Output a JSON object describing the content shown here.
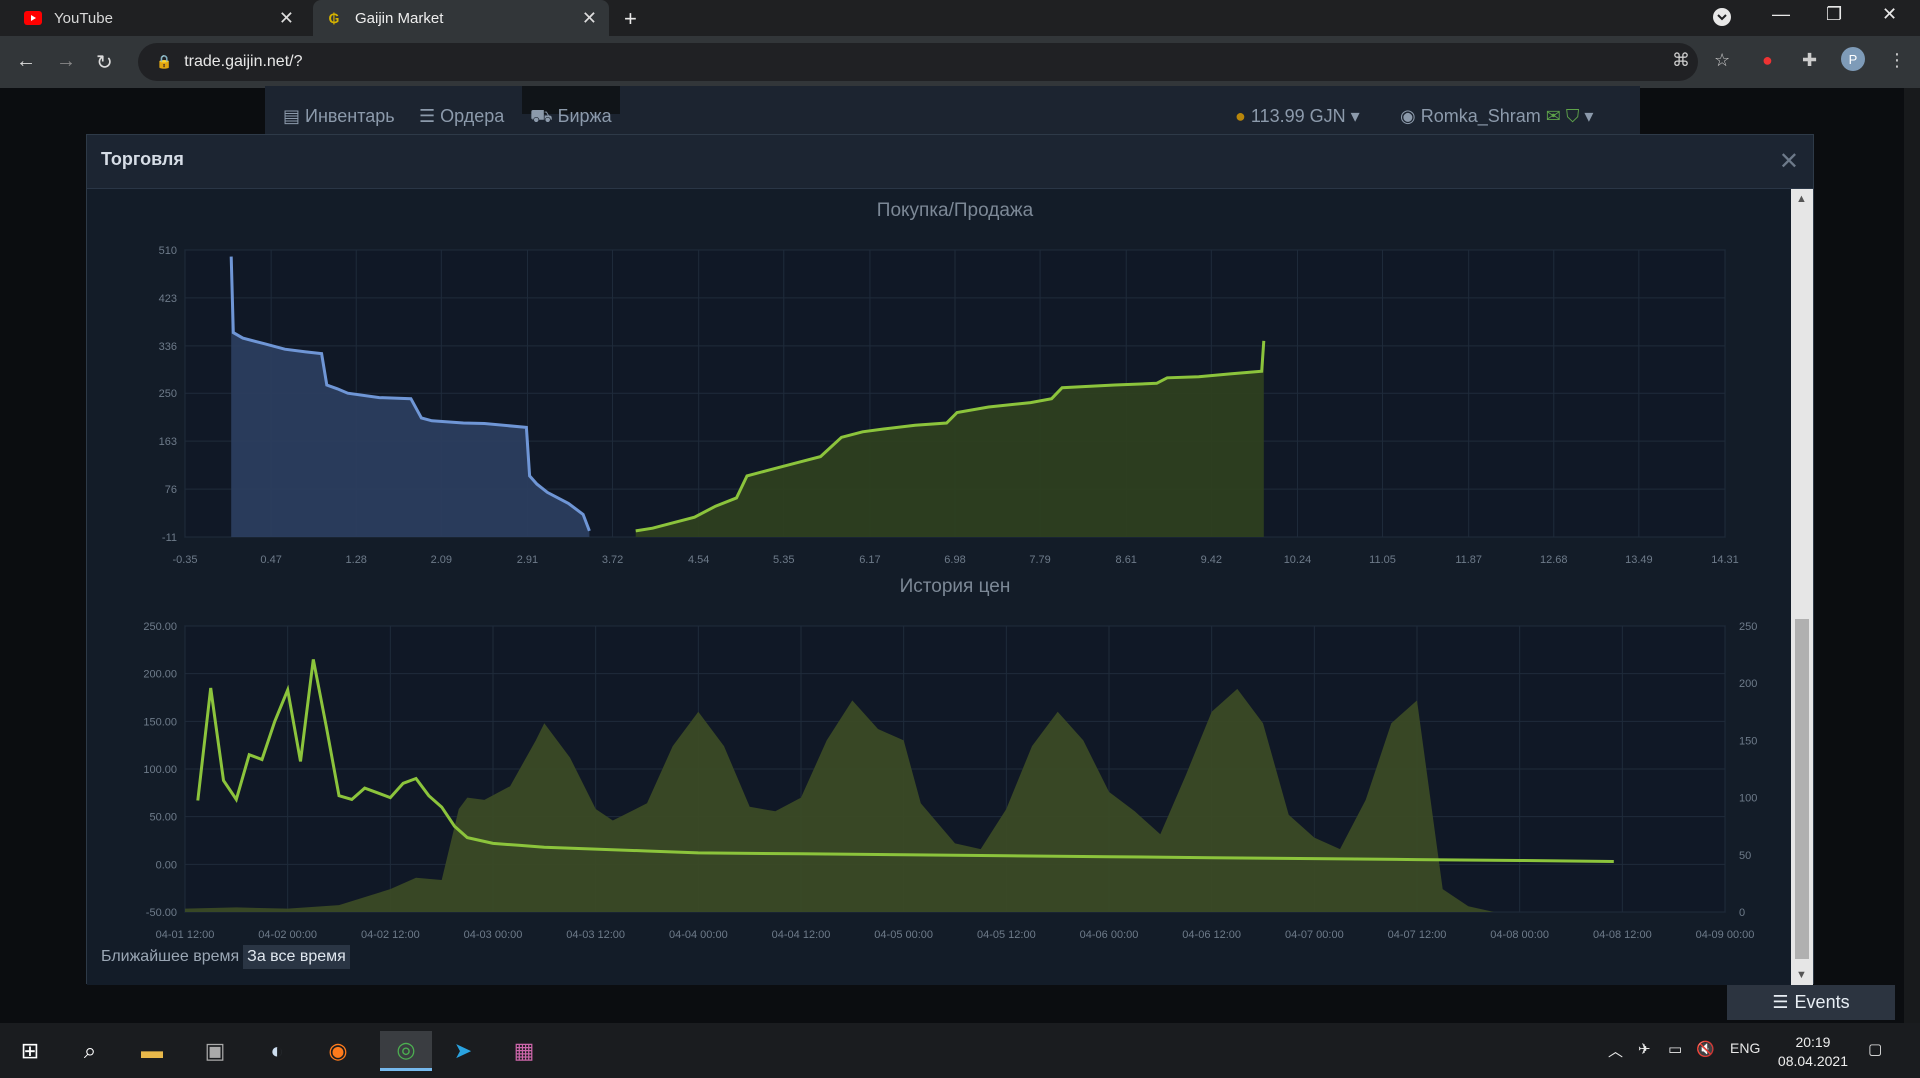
{
  "browser": {
    "tabs": [
      {
        "title": "YouTube",
        "icon": "youtube-icon",
        "color": "#ff0000"
      },
      {
        "title": "Gaijin Market",
        "icon": "gaijin-icon",
        "color": "#d4b200"
      }
    ],
    "url": "trade.gaijin.net/?"
  },
  "site": {
    "nav": [
      "Инвентарь",
      "Ордера",
      "Биржа"
    ],
    "balance": "113.99 GJN",
    "username": "Romka_Shram"
  },
  "modal": {
    "title": "Торговля",
    "close": "✕"
  },
  "chart_data": [
    {
      "type": "area",
      "title": "Покупка/Продажа",
      "x_ticks": [
        "-0.35",
        "0.47",
        "1.28",
        "2.09",
        "2.91",
        "3.72",
        "4.54",
        "5.35",
        "6.17",
        "6.98",
        "7.79",
        "8.61",
        "9.42",
        "10.24",
        "11.05",
        "11.87",
        "12.68",
        "13.49",
        "14.31"
      ],
      "y_ticks": [
        "510",
        "423",
        "336",
        "250",
        "163",
        "76",
        "-11"
      ],
      "xlim": [
        -0.35,
        14.31
      ],
      "ylim": [
        -11,
        510
      ],
      "series": [
        {
          "color": "#6f96d6",
          "x": [
            0.09,
            0.11,
            0.2,
            0.4,
            0.6,
            0.8,
            0.95,
            1.0,
            1.1,
            1.2,
            1.5,
            1.8,
            1.9,
            2.0,
            2.3,
            2.5,
            2.9,
            2.93,
            3.0,
            3.1,
            3.3,
            3.44,
            3.5
          ],
          "y": [
            498,
            360,
            350,
            340,
            330,
            325,
            322,
            265,
            258,
            250,
            242,
            240,
            205,
            200,
            196,
            195,
            188,
            100,
            85,
            70,
            50,
            30,
            0
          ]
        },
        {
          "color": "#8cc43c",
          "x": [
            3.94,
            4.1,
            4.3,
            4.5,
            4.7,
            4.9,
            5.0,
            5.2,
            5.5,
            5.7,
            5.9,
            6.1,
            6.3,
            6.6,
            6.9,
            7.0,
            7.3,
            7.7,
            7.9,
            8.0,
            8.2,
            8.5,
            8.9,
            9.0,
            9.3,
            9.6,
            9.9,
            9.92
          ],
          "y": [
            0,
            5,
            15,
            25,
            45,
            60,
            100,
            110,
            125,
            135,
            170,
            180,
            185,
            192,
            196,
            215,
            225,
            233,
            240,
            260,
            262,
            265,
            268,
            278,
            280,
            285,
            290,
            345
          ]
        }
      ]
    },
    {
      "type": "line",
      "title": "История цен",
      "x_ticks": [
        "04-01 12:00",
        "04-02 00:00",
        "04-02 12:00",
        "04-03 00:00",
        "04-03 12:00",
        "04-04 00:00",
        "04-04 12:00",
        "04-05 00:00",
        "04-05 12:00",
        "04-06 00:00",
        "04-06 12:00",
        "04-07 00:00",
        "04-07 12:00",
        "04-08 00:00",
        "04-08 12:00",
        "04-09 00:00"
      ],
      "y_left_ticks": [
        "250.00",
        "200.00",
        "150.00",
        "100.00",
        "50.00",
        "0.00",
        "-50.00"
      ],
      "y_right_ticks": [
        "250",
        "200",
        "150",
        "100",
        "50",
        "0"
      ],
      "ylim_left": [
        -50,
        250
      ],
      "ylim_right": [
        0,
        250
      ],
      "price_series": {
        "color": "#8cc43c",
        "x_hours": [
          3,
          6,
          9,
          12,
          15,
          18,
          21,
          24,
          27,
          30,
          33,
          36,
          39,
          42,
          45,
          48,
          51,
          54,
          57,
          60,
          63,
          66,
          69,
          72,
          78,
          84,
          96,
          108,
          120,
          144,
          168,
          192,
          216,
          240,
          264,
          288,
          312,
          334
        ],
        "values": [
          67,
          185,
          88,
          68,
          115,
          110,
          150,
          183,
          108,
          215,
          145,
          72,
          68,
          80,
          75,
          70,
          85,
          90,
          72,
          60,
          40,
          28,
          25,
          22,
          20,
          18,
          16,
          14,
          12,
          11,
          10,
          9,
          8,
          7,
          6,
          5,
          4,
          3
        ]
      },
      "volume_series": {
        "color": "#3b4a25",
        "x_hours": [
          0,
          12,
          24,
          36,
          48,
          54,
          60,
          64,
          66,
          70,
          76,
          82,
          84,
          90,
          96,
          100,
          108,
          114,
          120,
          126,
          132,
          138,
          144,
          150,
          156,
          162,
          168,
          172,
          180,
          186,
          192,
          198,
          204,
          210,
          216,
          222,
          228,
          234,
          240,
          246,
          252,
          258,
          264,
          270,
          276,
          282,
          288,
          294,
          300,
          306,
          312,
          318,
          324,
          330,
          334
        ],
        "values": [
          3,
          4,
          3,
          6,
          20,
          30,
          28,
          90,
          100,
          98,
          110,
          150,
          165,
          135,
          90,
          80,
          95,
          145,
          175,
          145,
          92,
          88,
          100,
          150,
          185,
          160,
          150,
          95,
          60,
          55,
          90,
          145,
          175,
          150,
          105,
          88,
          68,
          120,
          175,
          195,
          165,
          85,
          65,
          55,
          98,
          165,
          185,
          20,
          5,
          0,
          0,
          0,
          0,
          0,
          0
        ]
      }
    }
  ],
  "buttons": {
    "nearest": "Ближайшее время",
    "alltime": "За все время"
  },
  "events_button": "Events",
  "taskbar": {
    "lang": "ENG",
    "time": "20:19",
    "date": "08.04.2021"
  }
}
